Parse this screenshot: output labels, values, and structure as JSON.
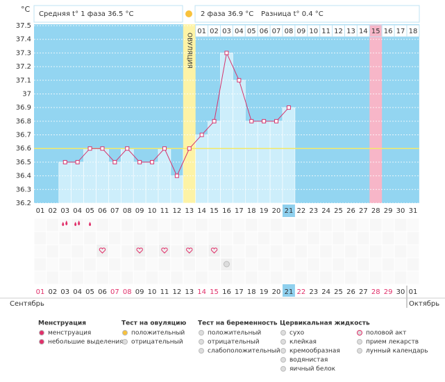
{
  "axis_unit": "°C",
  "header": {
    "phase1": "Средняя t° 1 фаза 36.5 °C",
    "phase2": "2 фаза 36.9 °C",
    "difference": "Разница t° 0.4 °C"
  },
  "chart_data": {
    "type": "line",
    "categories": [
      "01",
      "02",
      "03",
      "04",
      "05",
      "06",
      "07",
      "08",
      "09",
      "10",
      "11",
      "12",
      "13",
      "14",
      "15",
      "16",
      "17",
      "18",
      "19",
      "20",
      "21",
      "22",
      "23",
      "24",
      "25",
      "26",
      "27",
      "28",
      "29",
      "30",
      "31"
    ],
    "values": [
      null,
      null,
      36.5,
      36.5,
      36.6,
      36.6,
      36.5,
      36.6,
      36.5,
      36.5,
      36.6,
      36.4,
      36.6,
      36.7,
      36.8,
      37.3,
      37.1,
      36.8,
      36.8,
      36.8,
      36.9,
      null,
      null,
      null,
      null,
      null,
      null,
      null,
      null,
      null,
      null
    ],
    "cycle_days": [
      null,
      null,
      null,
      null,
      null,
      null,
      null,
      null,
      null,
      null,
      null,
      null,
      null,
      "01",
      "02",
      "03",
      "04",
      "05",
      "06",
      "07",
      "08",
      "09",
      "10",
      "11",
      "12",
      "13",
      "14",
      "15",
      "16",
      "17",
      "18"
    ],
    "ylim": [
      36.2,
      37.5
    ],
    "yticks": [
      36.2,
      36.3,
      36.4,
      36.5,
      36.6,
      36.7,
      36.8,
      36.9,
      37,
      37.1,
      37.2,
      37.3,
      37.4,
      37.5
    ],
    "ovulation_label": "ОВУЛЯЦИЯ",
    "ovulation_index": 12,
    "today_index": 20,
    "pink_index": 27,
    "coverline": 36.6,
    "color": "#d6336c",
    "bar_color": "#cdeefb",
    "background": "#93d5f1",
    "grid": true
  },
  "bottom_dates": [
    "01",
    "02",
    "03",
    "04",
    "05",
    "06",
    "07",
    "08",
    "09",
    "10",
    "11",
    "12",
    "13",
    "14",
    "15",
    "16",
    "17",
    "18",
    "19",
    "20",
    "21",
    "22",
    "23",
    "24",
    "25",
    "26",
    "27",
    "28",
    "29",
    "30",
    "01"
  ],
  "weekend_indices": [
    0,
    6,
    7,
    13,
    14,
    21,
    27,
    28
  ],
  "months": [
    "Сентябрь",
    "Октябрь"
  ],
  "events": {
    "menstruation": [
      2,
      3
    ],
    "light_discharge": [
      4
    ],
    "intercourse": [
      5,
      8,
      10,
      12,
      14
    ],
    "medication": [
      15
    ]
  },
  "legend": [
    {
      "title": "Менструация",
      "items": [
        "менструация",
        "небольшие выделения"
      ]
    },
    {
      "title": "Тест на овуляцию",
      "items": [
        "положительный",
        "отрицательный"
      ]
    },
    {
      "title": "Тест на беременность",
      "items": [
        "положительный",
        "отрицательный",
        "слабоположительный"
      ]
    },
    {
      "title": "Цервикальная жидкость",
      "items": [
        "сухо",
        "клейкая",
        "кремообразная",
        "водянистая",
        "яичный белок"
      ]
    },
    {
      "items": [
        "половой акт",
        "прием лекарств",
        "лунный календарь"
      ]
    }
  ]
}
